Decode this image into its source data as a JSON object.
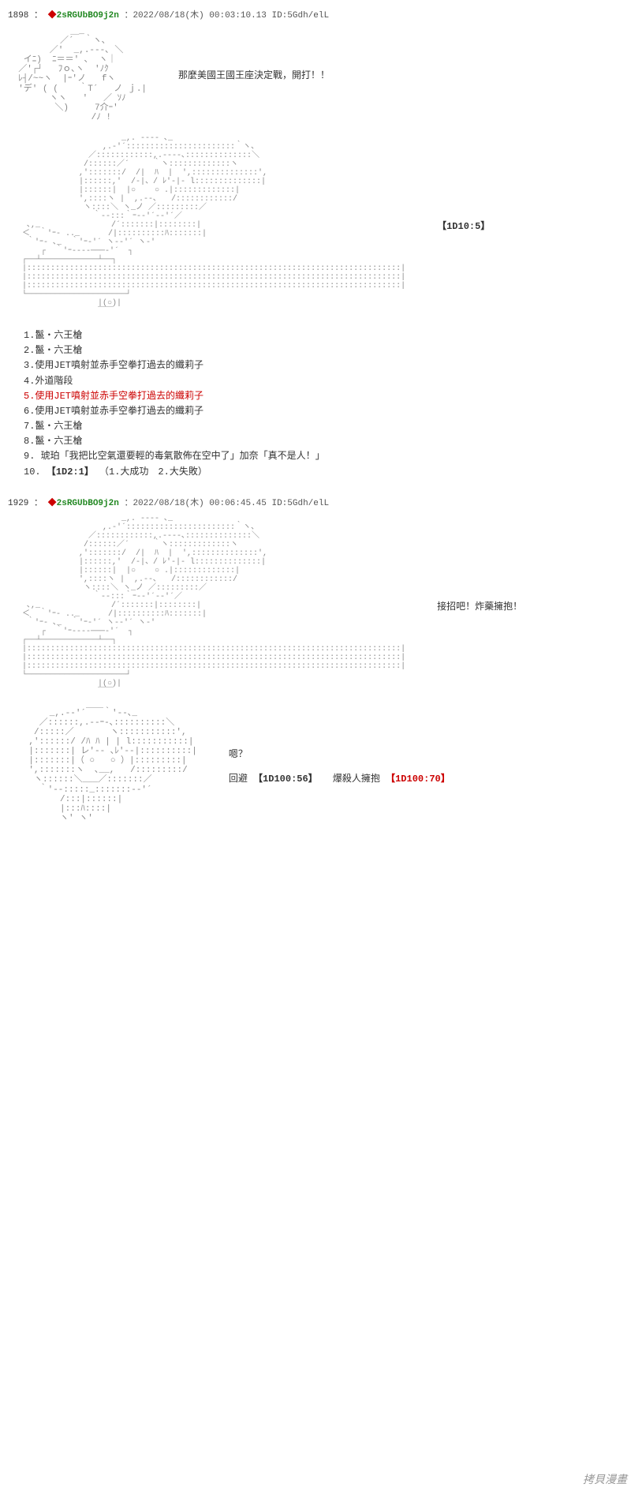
{
  "posts": [
    {
      "num": "1898",
      "trip_diamond": "◆",
      "trip": "2sRGUbBO9j2n",
      "timestamp": "：2022/08/18(木) 00:03:10.13 ID:5Gdh/elL"
    },
    {
      "num": "1929",
      "trip_diamond": "◆",
      "trip": "2sRGUbBO9j2n",
      "timestamp": "：2022/08/18(木) 00:06:45.45 ID:5Gdh/elL"
    }
  ],
  "sections": {
    "s1_text": "那麼美國王國王座決定戰，開打！！",
    "s2_text": "【1D10:5】",
    "s3_text": "接招吧！炸藥擁抱！",
    "s4_text": "嗯？",
    "s4_line2_a": "回避",
    "s4_roll1": "【1D100:56】",
    "s4_line2_b": "　爆殺人擁抱",
    "s4_roll2": "【1D100:70】"
  },
  "options": {
    "o1": "1.鬣・六王槍",
    "o2": "2.鬣・六王槍",
    "o3": "3.使用JET噴射並赤手空拳打過去的纖莉子",
    "o4": "4.外道階段",
    "o5": "5.使用JET噴射並赤手空拳打過去的纖莉子",
    "o6": "6.使用JET噴射並赤手空拳打過去的纖莉子",
    "o7": "7.鬣・六王槍",
    "o8": "8.鬣・六王槍",
    "o9": "9. 琥珀「我把比空氣還要輕的毒氣散佈在空中了」加奈「真不是人！」",
    "o10a": "10.",
    "o10roll": "【1D2:1】",
    "o10b": "（1.大成功　2.大失敗）"
  },
  "watermark": "拷貝漫畫",
  "aa": {
    "art1": "            ＿_\n          ／´  ｀ヽ､\n        ／'  _,.-‐-､ ＼\n   イﾆ)  ﾆ＝＝' ､  ヽ｜\n  ／'┌┘   ﾌｏ､ヽ  'ﾉｸ\n  ﾚ┤/~~ヽ  |ｰ'ノ   fヽ\n  'デ' ( (    ｀T´   ノ ｊ.|\n        ヽヽ   '   ／ ｿﾉ\n         ＼)     7介ｰ'\n                /ﾉ !",
    "art2": "                        _,. -‐‐- ､_\n                    ,.‐'´:::::::::::::::::::::::｀ヽ、\n                 ／::::::::::::,.-‐‐-､::::::::::::::＼\n                /::::::／´     ｀ヽ:::::::::::::ヽ\n               ,':::::::/  /|  ﾊ  |  ',::::::::::::::',\n               |::::::,'  /‐|、/ ﾚ'-|‐ l::::::::::::::|\n               |::::::|  |○    ○ .|:::::::::::::|\n               ',::::ヽ |  ,.--､   /::::::::::::/\n                ヽ::::＼ ヽ_ノ ／:::::::::／\n                  ｀‐-:::｀ｰ-‐'´-‐'´／\n    ､,_               /´:::::::|::::::::|\n   ＜  ｀'ｰ- .._      /|::::::::::ﾊ:::::::|\n    ｀'ｰ- ､_  ｀'ｰ-'´ ヽ-‐'´ ヽ‐'\n       ┌  ｀'ｰ---‐───‐'´  ┐\n   ┌──┴────────────┴──┐\n   |:::::::::::::::::::::::::::::::::::::::::::::::::::::::::::::::::::::::::::::::|\n   |:::::::::::::::::::::::::::::::::::::::::::::::::::::::::::::::::::::::::::::::|\n   |:::::::::::::::::::::::::::::::::::::::::::::::::::::::::::::::::::::::::::::::|\n   └─────────────────────┘\n                   |(○)|\n                   ￣￣",
    "art3": "        _,.-‐'´￣￣｀'‐-､_\n      ／::::::,.-‐ｰ-､::::::::::＼\n     /:::::／       ヽ:::::::::::',\n    ,'::::::/ /ﾊ ﾊ | | l:::::::::::|\n    |:::::::| レ'‐- ､ﾚ'-‐|::::::::::|\n    |:::::::|（ ○   ○ ）|:::::::::|\n    ',:::::::ヽ  ､__,   /:::::::::/\n     ヽ::::::＼___／:::::::／\n      ｀'‐-:::::_:::::::-‐'´\n          /:::|::::::|\n          |:::ﾊ::::|\n          ヽ' ヽ'"
  }
}
